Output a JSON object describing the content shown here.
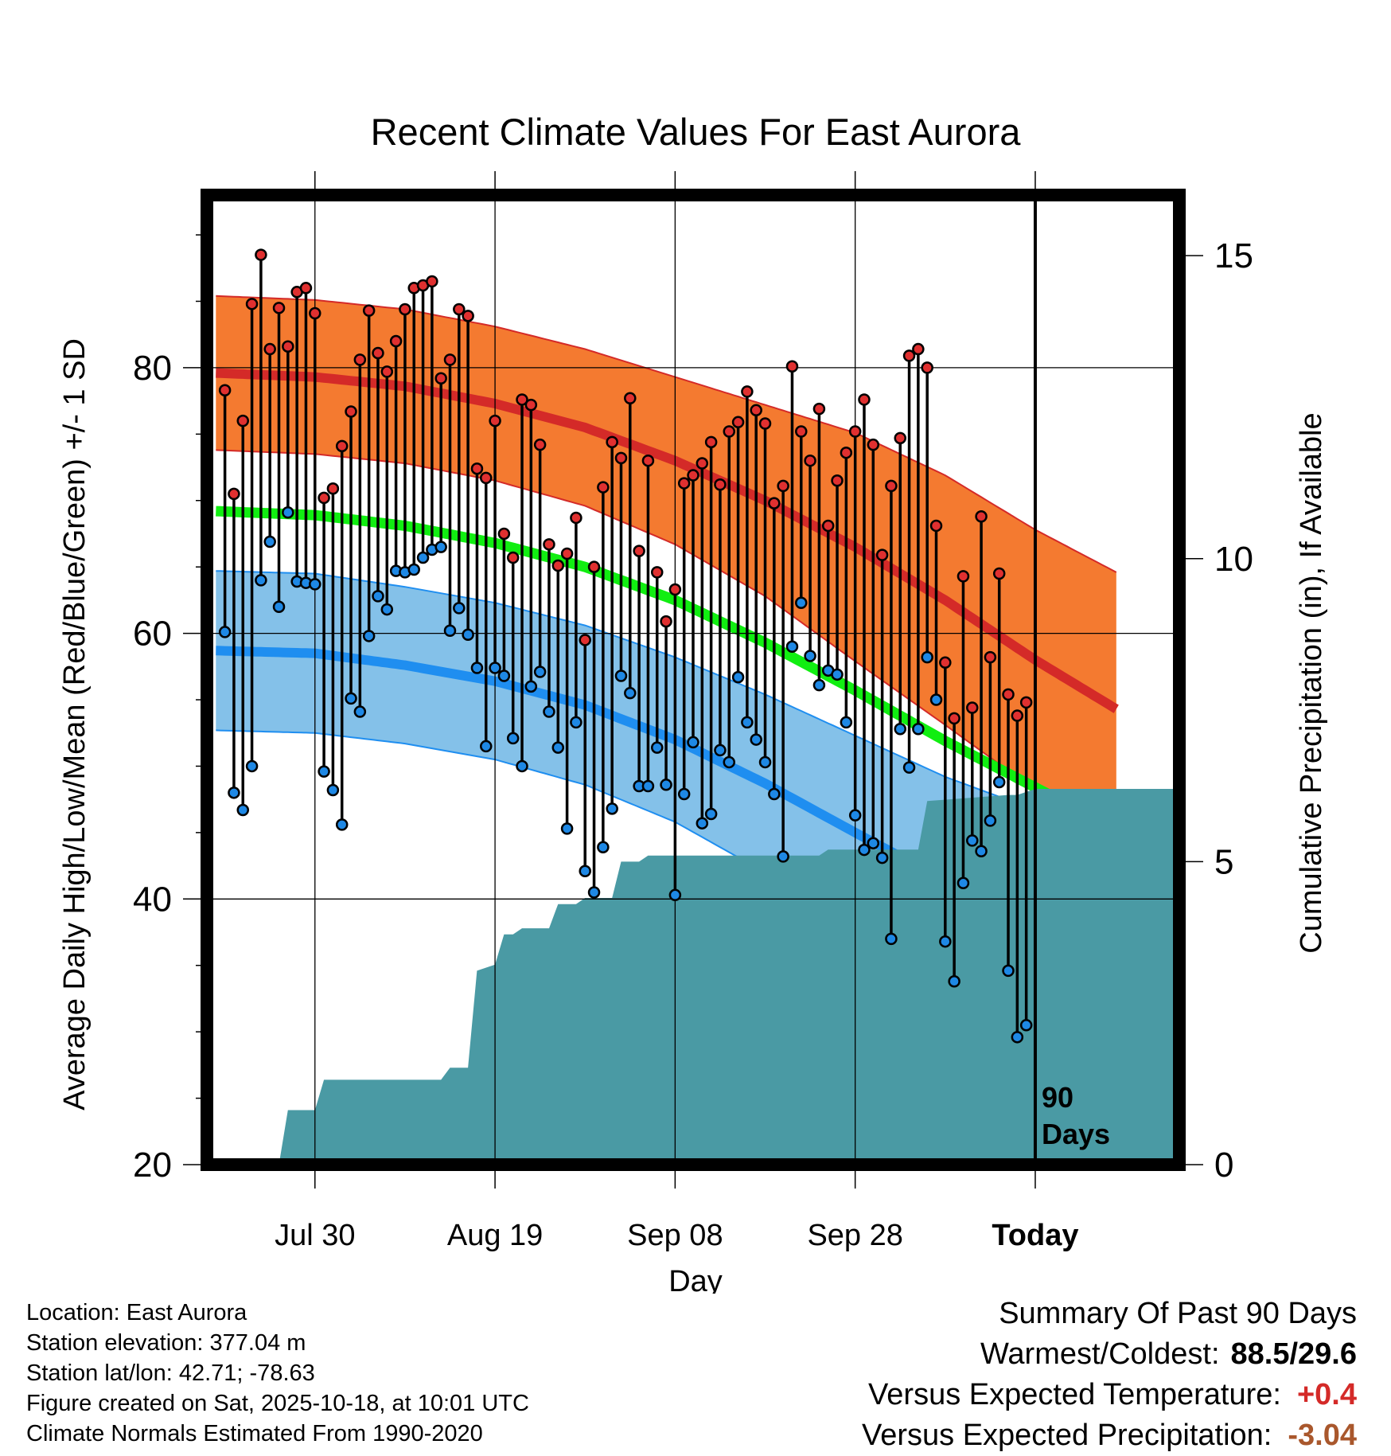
{
  "chart_data": {
    "type": "line",
    "title": "Recent Climate Values For East Aurora",
    "xlabel": "Day",
    "ylabel": "Average Daily High/Low/Mean (Red/Blue/Green) +/- 1 SD",
    "y2label": "Cumulative Precipitation (in), If Available",
    "ylim": [
      20,
      93
    ],
    "y2lim": [
      0,
      16
    ],
    "yticks": [
      20,
      40,
      60,
      80
    ],
    "y2ticks": [
      0,
      5,
      10,
      15
    ],
    "xrange": [
      -12,
      96
    ],
    "xticks": [
      {
        "day": 0,
        "label": "Jul 30"
      },
      {
        "day": 20,
        "label": "Aug 19"
      },
      {
        "day": 40,
        "label": "Sep 08"
      },
      {
        "day": 60,
        "label": "Sep 28"
      },
      {
        "day": 80,
        "label": "Today"
      }
    ],
    "period_label_line1": "90",
    "period_label_line2": "Days",
    "colors": {
      "high_band": "#f47a30",
      "high_mean": "#d42a28",
      "low_band": "#84c1e9",
      "low_mean": "#1f8ef0",
      "mean": "#11ee11",
      "precip": "#4a9aa4",
      "high_dot": "#e03030",
      "low_dot": "#1e88e5"
    },
    "normals": {
      "days": [
        -11,
        0,
        10,
        20,
        30,
        40,
        50,
        60,
        70,
        80,
        89
      ],
      "high": [
        79.6,
        79.3,
        78.6,
        77.3,
        75.5,
        73.0,
        70.0,
        66.5,
        62.5,
        58.0,
        54.3
      ],
      "high_sd": [
        5.8,
        5.8,
        5.8,
        5.8,
        5.9,
        6.3,
        7.2,
        8.6,
        9.4,
        9.8,
        10.3
      ],
      "low": [
        58.7,
        58.5,
        57.6,
        56.4,
        54.6,
        52.0,
        48.7,
        45.0,
        41.4,
        38.8,
        36.3
      ],
      "low_sd": [
        6.0,
        6.0,
        5.9,
        5.9,
        6.0,
        6.2,
        6.7,
        7.3,
        7.8,
        7.9,
        7.9
      ],
      "mean": [
        69.2,
        68.9,
        68.1,
        66.8,
        65.0,
        62.5,
        59.3,
        55.7,
        51.9,
        48.4,
        45.3
      ]
    },
    "observations": {
      "start_day": -10,
      "highs": [
        78.3,
        70.5,
        76.0,
        84.8,
        88.5,
        81.4,
        84.5,
        81.6,
        85.7,
        86.0,
        84.1,
        70.2,
        70.9,
        74.1,
        76.7,
        80.6,
        84.3,
        81.1,
        79.7,
        82.0,
        84.4,
        86.0,
        86.2,
        86.5,
        79.2,
        80.6,
        84.4,
        83.9,
        72.4,
        71.7,
        76.0,
        67.5,
        65.7,
        77.6,
        77.2,
        74.2,
        66.7,
        65.1,
        66.0,
        68.7,
        59.5,
        65.0,
        71.0,
        74.4,
        73.2,
        77.7,
        66.2,
        73.0,
        64.6,
        60.9,
        63.3,
        71.3,
        71.9,
        72.8,
        74.4,
        71.2,
        75.2,
        75.9,
        78.2,
        76.8,
        75.8,
        69.8,
        71.1,
        80.1,
        75.2,
        73.0,
        76.9,
        68.1,
        71.5,
        73.6,
        75.2,
        77.6,
        74.2,
        65.9,
        71.1,
        74.7,
        80.9,
        81.4,
        80.0,
        68.1,
        57.8,
        53.6,
        64.3,
        54.4,
        68.8,
        58.2,
        64.5,
        55.4,
        53.8,
        54.8
      ],
      "lows": [
        60.1,
        48.0,
        46.7,
        50.0,
        64.0,
        66.9,
        62.0,
        69.1,
        63.9,
        63.8,
        63.7,
        49.6,
        48.2,
        45.6,
        55.1,
        54.1,
        59.8,
        62.8,
        61.8,
        64.7,
        64.6,
        64.8,
        65.7,
        66.3,
        66.5,
        60.2,
        61.9,
        59.9,
        57.4,
        51.5,
        57.4,
        56.8,
        52.1,
        50.0,
        56.0,
        57.1,
        54.1,
        51.4,
        45.3,
        53.3,
        42.1,
        40.5,
        43.9,
        46.8,
        56.8,
        55.5,
        48.5,
        48.5,
        51.4,
        48.6,
        40.3,
        47.9,
        51.8,
        45.7,
        46.4,
        51.2,
        50.3,
        56.7,
        53.3,
        52.0,
        50.3,
        47.9,
        43.2,
        59.0,
        62.3,
        58.3,
        56.1,
        57.2,
        56.9,
        53.3,
        46.3,
        43.7,
        44.2,
        43.1,
        37.0,
        52.8,
        49.9,
        52.8,
        58.2,
        55.0,
        36.8,
        33.8,
        41.2,
        44.4,
        43.6,
        45.9,
        48.8,
        34.6,
        29.6,
        30.5
      ]
    },
    "precip_cumulative": {
      "days": [
        -12,
        -4,
        -3,
        0,
        1,
        14,
        15,
        17,
        18,
        20,
        21,
        22,
        23,
        26,
        27,
        29,
        30,
        33,
        34,
        36,
        37,
        40,
        41,
        56,
        57,
        67,
        68,
        77,
        78,
        80,
        81,
        96
      ],
      "values": [
        0,
        0,
        0.9,
        0.9,
        1.4,
        1.4,
        1.6,
        1.6,
        3.2,
        3.3,
        3.8,
        3.8,
        3.9,
        3.9,
        4.3,
        4.3,
        4.4,
        4.4,
        5.0,
        5.0,
        5.1,
        5.1,
        5.1,
        5.1,
        5.2,
        5.2,
        6.0,
        6.1,
        6.1,
        6.2,
        6.2,
        6.2
      ]
    }
  },
  "info": {
    "location": "Location: East Aurora",
    "elevation": "Station elevation: 377.04 m",
    "latlon": "Station lat/lon: 42.71; -78.63",
    "created": "Figure created on Sat, 2025-10-18, at 10:01 UTC",
    "normals": "Climate Normals Estimated From 1990-2020"
  },
  "summary": {
    "title": "Summary Of Past 90 Days",
    "warm_cold_label": "Warmest/Coldest:",
    "warm_cold_value": "88.5/29.6",
    "temp_label": "Versus Expected Temperature:",
    "temp_value": "+0.4",
    "temp_color": "#d42a28",
    "precip_label": "Versus Expected Precipitation:",
    "precip_value": "-3.04",
    "precip_color": "#a9572c"
  }
}
